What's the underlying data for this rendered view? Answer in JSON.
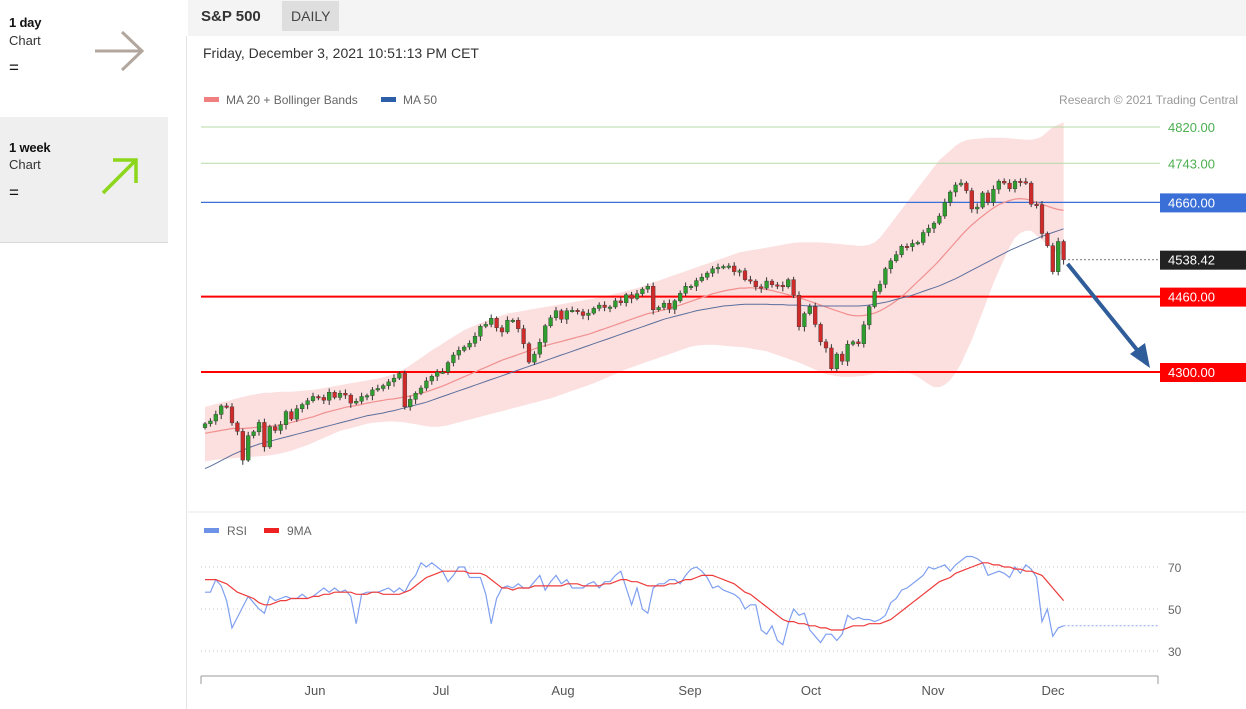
{
  "sidebar": {
    "timeframes": [
      {
        "title": "1 day",
        "sub": "Chart",
        "eq": "=",
        "arrow": "right",
        "color": "#b2a79e"
      },
      {
        "title": "1 week",
        "sub": "Chart",
        "eq": "=",
        "arrow": "up-right",
        "color": "#8cd61c"
      }
    ]
  },
  "header": {
    "title": "S&P 500",
    "tag": "DAILY"
  },
  "datetime": "Friday, December 3, 2021 10:51:13 PM CET",
  "copyright": "Research © 2021 Trading Central",
  "chart_data": [
    {
      "type": "candlestick",
      "legend": [
        {
          "name": "MA 20 + Bollinger Bands",
          "color": "#f08080"
        },
        {
          "name": "MA 50",
          "color": "#2d5ea8"
        }
      ],
      "x_ticks": [
        "Jun",
        "Jul",
        "Aug",
        "Sep",
        "Oct",
        "Nov",
        "Dec"
      ],
      "levels": [
        {
          "value": 4820,
          "label": "4820.00",
          "color": "#4caf50",
          "kind": "resistance"
        },
        {
          "value": 4743,
          "label": "4743.00",
          "color": "#4caf50",
          "kind": "resistance"
        },
        {
          "value": 4660,
          "label": "4660.00",
          "color": "#3a6fd8",
          "kind": "pivot"
        },
        {
          "value": 4538.42,
          "label": "4538.42",
          "color": "#222222",
          "kind": "last"
        },
        {
          "value": 4460,
          "label": "4460.00",
          "color": "#ff0000",
          "kind": "support"
        },
        {
          "value": 4300,
          "label": "4300.00",
          "color": "#ff0000",
          "kind": "support"
        }
      ],
      "y_range": [
        4080,
        4920
      ],
      "close": [
        4190,
        4196,
        4210,
        4228,
        4226,
        4192,
        4174,
        4113,
        4165,
        4173,
        4193,
        4141,
        4184,
        4176,
        4188,
        4216,
        4200,
        4222,
        4231,
        4239,
        4248,
        4246,
        4240,
        4257,
        4246,
        4255,
        4251,
        4234,
        4238,
        4248,
        4250,
        4262,
        4265,
        4271,
        4279,
        4287,
        4297,
        4226,
        4242,
        4255,
        4266,
        4281,
        4291,
        4300,
        4300,
        4320,
        4336,
        4346,
        4353,
        4361,
        4376,
        4397,
        4401,
        4414,
        4394,
        4385,
        4410,
        4410,
        4392,
        4360,
        4321,
        4338,
        4363,
        4398,
        4415,
        4430,
        4412,
        4430,
        4431,
        4428,
        4420,
        4425,
        4435,
        4442,
        4437,
        4438,
        4451,
        4447,
        4464,
        4456,
        4466,
        4476,
        4482,
        4432,
        4437,
        4446,
        4433,
        4451,
        4467,
        4482,
        4482,
        4494,
        4501,
        4510,
        4519,
        4522,
        4524,
        4525,
        4513,
        4515,
        4496,
        4493,
        4481,
        4478,
        4493,
        4485,
        4484,
        4481,
        4496,
        4463,
        4396,
        4424,
        4439,
        4401,
        4364,
        4351,
        4307,
        4338,
        4323,
        4359,
        4364,
        4360,
        4400,
        4439,
        4471,
        4486,
        4519,
        4536,
        4549,
        4567,
        4566,
        4573,
        4575,
        4596,
        4605,
        4616,
        4631,
        4660,
        4682,
        4697,
        4701,
        4685,
        4646,
        4650,
        4680,
        4660,
        4688,
        4705,
        4701,
        4689,
        4705,
        4704,
        4701,
        4656,
        4655,
        4594,
        4568,
        4513,
        4577,
        4538
      ],
      "ma20": [
        4170,
        4172,
        4174,
        4176,
        4178,
        4180,
        4180,
        4180,
        4181,
        4182,
        4183,
        4184,
        4185,
        4186,
        4188,
        4190,
        4193,
        4196,
        4199,
        4202,
        4205,
        4209,
        4213,
        4216,
        4219,
        4222,
        4225,
        4227,
        4229,
        4231,
        4234,
        4236,
        4238,
        4240,
        4242,
        4243,
        4245,
        4247,
        4249,
        4252,
        4255,
        4258,
        4262,
        4266,
        4270,
        4275,
        4280,
        4285,
        4290,
        4295,
        4300,
        4305,
        4310,
        4315,
        4320,
        4325,
        4329,
        4333,
        4337,
        4341,
        4345,
        4349,
        4353,
        4356,
        4359,
        4362,
        4365,
        4368,
        4371,
        4374,
        4377,
        4380,
        4384,
        4388,
        4392,
        4396,
        4400,
        4404,
        4408,
        4412,
        4416,
        4420,
        4424,
        4426,
        4429,
        4432,
        4435,
        4439,
        4442,
        4446,
        4450,
        4454,
        4458,
        4462,
        4466,
        4469,
        4472,
        4474,
        4476,
        4478,
        4478,
        4479,
        4478,
        4477,
        4475,
        4473,
        4470,
        4467,
        4464,
        4461,
        4458,
        4454,
        4450,
        4446,
        4442,
        4438,
        4434,
        4430,
        4426,
        4422,
        4420,
        4419,
        4420,
        4422,
        4425,
        4430,
        4436,
        4443,
        4451,
        4460,
        4470,
        4481,
        4492,
        4503,
        4514,
        4525,
        4537,
        4550,
        4563,
        4576,
        4589,
        4601,
        4612,
        4622,
        4631,
        4640,
        4648,
        4655,
        4660,
        4664,
        4667,
        4668,
        4667,
        4664,
        4660,
        4656,
        4652,
        4648,
        4645,
        4643
      ],
      "bb_upper": [
        4226,
        4229,
        4232,
        4235,
        4238,
        4241,
        4244,
        4247,
        4250,
        4252,
        4254,
        4256,
        4256,
        4257,
        4258,
        4258,
        4258,
        4259,
        4260,
        4261,
        4262,
        4264,
        4266,
        4268,
        4270,
        4272,
        4274,
        4276,
        4278,
        4280,
        4282,
        4284,
        4286,
        4289,
        4292,
        4296,
        4301,
        4307,
        4314,
        4322,
        4330,
        4338,
        4346,
        4353,
        4360,
        4368,
        4375,
        4382,
        4389,
        4394,
        4399,
        4404,
        4408,
        4412,
        4416,
        4420,
        4424,
        4426,
        4428,
        4430,
        4432,
        4434,
        4436,
        4438,
        4440,
        4442,
        4444,
        4446,
        4448,
        4450,
        4452,
        4454,
        4456,
        4458,
        4460,
        4463,
        4466,
        4469,
        4472,
        4475,
        4478,
        4482,
        4486,
        4490,
        4494,
        4498,
        4502,
        4506,
        4510,
        4514,
        4518,
        4522,
        4526,
        4530,
        4534,
        4538,
        4542,
        4546,
        4550,
        4554,
        4556,
        4558,
        4560,
        4562,
        4564,
        4566,
        4568,
        4570,
        4572,
        4574,
        4575,
        4575,
        4575,
        4575,
        4575,
        4574,
        4573,
        4572,
        4571,
        4570,
        4569,
        4568,
        4568,
        4570,
        4575,
        4585,
        4600,
        4615,
        4630,
        4645,
        4660,
        4675,
        4690,
        4705,
        4720,
        4735,
        4750,
        4760,
        4770,
        4780,
        4788,
        4792,
        4794,
        4795,
        4796,
        4797,
        4797,
        4797,
        4797,
        4796,
        4795,
        4794,
        4793,
        4793,
        4795,
        4800,
        4810,
        4820,
        4825,
        4830
      ],
      "bb_lower": [
        4110,
        4112,
        4114,
        4115,
        4116,
        4117,
        4118,
        4119,
        4120,
        4120,
        4121,
        4122,
        4123,
        4125,
        4127,
        4130,
        4133,
        4137,
        4141,
        4145,
        4150,
        4155,
        4160,
        4165,
        4170,
        4175,
        4178,
        4181,
        4184,
        4187,
        4190,
        4192,
        4193,
        4194,
        4195,
        4195,
        4194,
        4193,
        4191,
        4189,
        4187,
        4185,
        4184,
        4184,
        4185,
        4187,
        4190,
        4193,
        4196,
        4199,
        4202,
        4205,
        4208,
        4211,
        4214,
        4217,
        4220,
        4223,
        4226,
        4229,
        4232,
        4235,
        4238,
        4241,
        4244,
        4248,
        4252,
        4256,
        4260,
        4264,
        4268,
        4272,
        4276,
        4281,
        4286,
        4291,
        4296,
        4301,
        4306,
        4310,
        4314,
        4318,
        4322,
        4326,
        4330,
        4334,
        4338,
        4342,
        4346,
        4350,
        4354,
        4356,
        4357,
        4358,
        4358,
        4357,
        4356,
        4355,
        4354,
        4353,
        4352,
        4350,
        4348,
        4346,
        4344,
        4340,
        4336,
        4332,
        4328,
        4324,
        4320,
        4315,
        4310,
        4305,
        4300,
        4296,
        4293,
        4291,
        4290,
        4290,
        4290,
        4291,
        4292,
        4294,
        4297,
        4300,
        4302,
        4303,
        4303,
        4302,
        4300,
        4295,
        4290,
        4282,
        4274,
        4268,
        4268,
        4273,
        4283,
        4298,
        4318,
        4343,
        4368,
        4398,
        4428,
        4458,
        4488,
        4515,
        4540,
        4565,
        4585,
        4595,
        4600,
        4600,
        4590,
        4580,
        4570,
        4560,
        4552,
        4545
      ],
      "ma50": [
        4095,
        4100,
        4106,
        4112,
        4118,
        4124,
        4129,
        4134,
        4139,
        4143,
        4147,
        4150,
        4153,
        4156,
        4159,
        4162,
        4165,
        4168,
        4171,
        4174,
        4177,
        4180,
        4183,
        4186,
        4189,
        4192,
        4195,
        4198,
        4201,
        4204,
        4207,
        4209,
        4211,
        4213,
        4216,
        4218,
        4221,
        4224,
        4227,
        4230,
        4233,
        4236,
        4240,
        4244,
        4248,
        4252,
        4256,
        4260,
        4264,
        4268,
        4272,
        4276,
        4280,
        4284,
        4288,
        4292,
        4296,
        4300,
        4304,
        4308,
        4312,
        4316,
        4320,
        4324,
        4328,
        4332,
        4336,
        4340,
        4344,
        4348,
        4352,
        4356,
        4360,
        4364,
        4368,
        4372,
        4376,
        4380,
        4384,
        4388,
        4392,
        4396,
        4400,
        4404,
        4408,
        4412,
        4415,
        4418,
        4421,
        4424,
        4427,
        4430,
        4432,
        4434,
        4436,
        4438,
        4440,
        4441,
        4442,
        4443,
        4444,
        4444,
        4444,
        4444,
        4444,
        4443,
        4443,
        4443,
        4442,
        4442,
        4442,
        4441,
        4440,
        4440,
        4440,
        4440,
        4440,
        4440,
        4440,
        4440,
        4440,
        4440,
        4441,
        4442,
        4444,
        4446,
        4448,
        4451,
        4454,
        4457,
        4460,
        4463,
        4467,
        4471,
        4475,
        4479,
        4483,
        4488,
        4493,
        4498,
        4504,
        4510,
        4516,
        4522,
        4528,
        4534,
        4540,
        4546,
        4552,
        4558,
        4563,
        4568,
        4573,
        4578,
        4583,
        4588,
        4592,
        4596,
        4600,
        4604
      ]
    },
    {
      "type": "line",
      "legend": [
        {
          "name": "RSI",
          "color": "#6d92e6"
        },
        {
          "name": "9MA",
          "color": "#ee2222"
        }
      ],
      "y_ticks": [
        70,
        50,
        30
      ],
      "y_range": [
        22,
        80
      ],
      "rsi": [
        58,
        58,
        64,
        61,
        54,
        41,
        46,
        51,
        56,
        53,
        50,
        48,
        56,
        54,
        55,
        56,
        55,
        55,
        57,
        55,
        56,
        58,
        60,
        58,
        60,
        58,
        59,
        56,
        43,
        57,
        58,
        58,
        58,
        59,
        60,
        58,
        60,
        58,
        63,
        66,
        72,
        70,
        72,
        70,
        68,
        63,
        66,
        70,
        70,
        65,
        65,
        65,
        57,
        43,
        55,
        60,
        61,
        60,
        62,
        60,
        60,
        63,
        66,
        59,
        63,
        66,
        62,
        64,
        60,
        60,
        60,
        62,
        63,
        60,
        63,
        63,
        66,
        68,
        60,
        52,
        60,
        50,
        48,
        60,
        62,
        62,
        64,
        64,
        62,
        66,
        69,
        70,
        68,
        65,
        60,
        61,
        59,
        58,
        57,
        55,
        50,
        52,
        52,
        40,
        38,
        42,
        35,
        33,
        43,
        50,
        47,
        48,
        40,
        37,
        34,
        38,
        38,
        35,
        38,
        47,
        45,
        46,
        45,
        45,
        44,
        45,
        47,
        53,
        55,
        59,
        60,
        62,
        64,
        66,
        70,
        69,
        70,
        71,
        68,
        71,
        73,
        75,
        75,
        74,
        72,
        66,
        67,
        68,
        67,
        65,
        70,
        67,
        71,
        69,
        65,
        44,
        50,
        37,
        41,
        42
      ],
      "rsi_last": 42,
      "ma9": [
        64,
        64,
        64,
        63,
        62,
        60,
        58,
        57,
        56,
        55,
        53,
        52,
        52,
        53,
        54,
        54,
        55,
        55,
        55,
        55,
        56,
        56,
        57,
        57,
        58,
        58,
        58,
        58,
        57,
        57,
        57,
        58,
        58,
        57,
        57,
        57,
        57,
        58,
        59,
        61,
        63,
        65,
        66,
        67,
        68,
        68,
        68,
        68,
        68,
        67,
        67,
        67,
        66,
        64,
        62,
        60,
        60,
        59,
        60,
        60,
        60,
        61,
        61,
        61,
        61,
        61,
        61,
        62,
        62,
        62,
        61,
        61,
        61,
        61,
        62,
        62,
        63,
        64,
        64,
        63,
        63,
        62,
        61,
        61,
        61,
        61,
        62,
        62,
        63,
        64,
        64,
        65,
        66,
        66,
        66,
        65,
        64,
        63,
        62,
        60,
        58,
        57,
        55,
        53,
        51,
        49,
        47,
        45,
        44,
        44,
        43,
        43,
        42,
        42,
        41,
        41,
        40,
        40,
        40,
        41,
        42,
        42,
        42,
        43,
        43,
        43,
        44,
        45,
        47,
        49,
        51,
        53,
        55,
        57,
        59,
        61,
        63,
        64,
        65,
        67,
        68,
        69,
        70,
        71,
        72,
        72,
        71,
        71,
        70,
        70,
        69,
        69,
        68,
        68,
        67,
        66,
        63,
        60,
        57,
        54
      ]
    }
  ]
}
